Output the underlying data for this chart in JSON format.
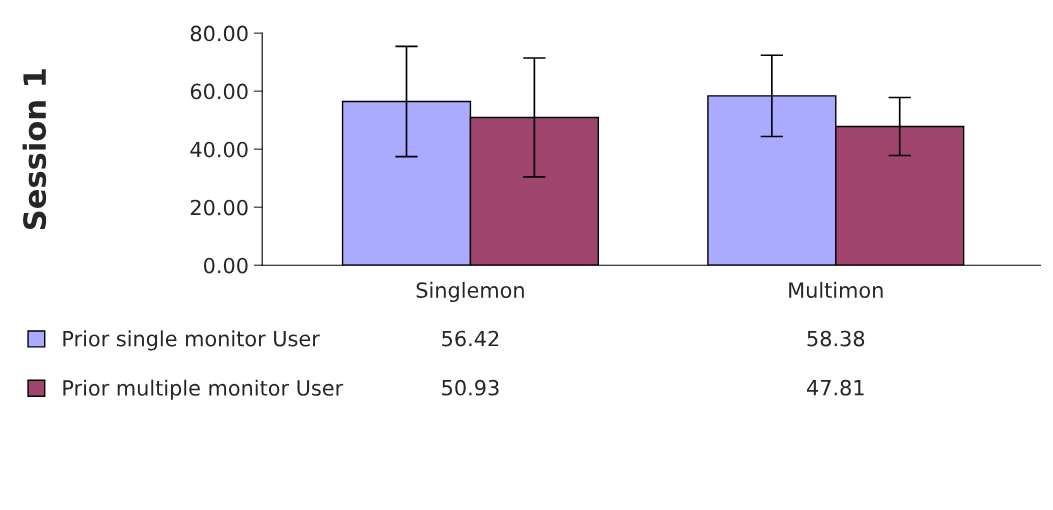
{
  "chart_data": {
    "type": "bar",
    "ylabel": "Session 1",
    "categories": [
      "Singlemon",
      "Multimon"
    ],
    "series": [
      {
        "name": "Prior single monitor User",
        "color": "#aaaaff",
        "values": [
          56.42,
          58.38
        ],
        "errors": [
          19,
          14
        ]
      },
      {
        "name": "Prior multiple monitor User",
        "color": "#a0456e",
        "values": [
          50.93,
          47.81
        ],
        "errors": [
          20.5,
          10
        ]
      }
    ],
    "ylim": [
      0,
      80
    ],
    "yticks": [
      {
        "value": 0,
        "label": "0.00"
      },
      {
        "value": 20,
        "label": "20.00"
      },
      {
        "value": 40,
        "label": "40.00"
      },
      {
        "value": 60,
        "label": "60.00"
      },
      {
        "value": 80,
        "label": "80.00"
      }
    ],
    "data_labels": true,
    "legend": "bottom left",
    "grid": false
  }
}
